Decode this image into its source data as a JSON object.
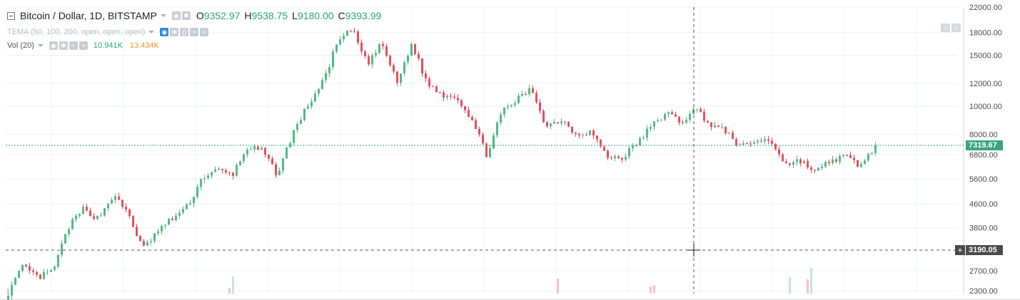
{
  "header": {
    "symbol": "Bitcoin / Dollar, 1D, BITSTAMP",
    "open_key": "O",
    "open_val": "9352.97",
    "high_key": "H",
    "high_val": "9538.75",
    "low_key": "L",
    "low_val": "9180.00",
    "close_key": "C",
    "close_val": "9393.99"
  },
  "indicators": {
    "tema_label": "TEMA (50, 100, 200, open, open, open)",
    "vol_label": "Vol (20)",
    "vol_value": "10.941K",
    "vol_ma_value": "13.434K"
  },
  "price_axis": {
    "labels": [
      "22000.00",
      "18000.00",
      "15000.00",
      "12000.00",
      "10000.00",
      "8000.00",
      "6800.00",
      "5600.00",
      "4600.00",
      "3800.00",
      "2700.00",
      "2300.00"
    ],
    "last_price": "7319.67",
    "crosshair_price": "3190.05",
    "scale": "log"
  },
  "chart_data": {
    "type": "candlestick",
    "y_scale": "log",
    "ylim": [
      2250,
      22000
    ],
    "colors": {
      "up": "#53b987",
      "down": "#eb4d5c",
      "up_vol": "#c4e8d6",
      "down_vol": "#f6c2c7",
      "grid": "#eef0f3",
      "last_line": "#3aa57f"
    },
    "anchors": [
      2270,
      2800,
      2550,
      2700,
      3800,
      4400,
      4100,
      4900,
      4300,
      3200,
      3700,
      4100,
      4500,
      5700,
      6000,
      5800,
      7200,
      7000,
      5800,
      8000,
      10000,
      12000,
      16500,
      18500,
      14000,
      16500,
      12000,
      16500,
      12000,
      11000,
      10800,
      9000,
      6800,
      9500,
      10500,
      11500,
      8500,
      9000,
      8000,
      8200,
      6700,
      6600,
      7400,
      8500,
      9500,
      8800,
      9800,
      8600,
      8200,
      7200,
      7600,
      7600,
      6300,
      6500,
      5900,
      6500,
      6700,
      6200,
      7320
    ],
    "volume_spikes": [
      {
        "candle": 219,
        "value": 2.3,
        "up": true
      },
      {
        "candle": 224,
        "value": 2.0,
        "up": false
      },
      {
        "candle": 225,
        "value": 3.6,
        "up": true
      },
      {
        "candle": 154,
        "value": 2.1,
        "up": false
      },
      {
        "candle": 180,
        "value": 1.0,
        "up": false
      },
      {
        "candle": 181,
        "value": 1.2,
        "up": false
      },
      {
        "candle": 63,
        "value": 2.4,
        "up": true
      },
      {
        "candle": 62,
        "value": 0.8,
        "up": false
      },
      {
        "candle": 0,
        "value": 0.7,
        "up": false
      }
    ]
  }
}
